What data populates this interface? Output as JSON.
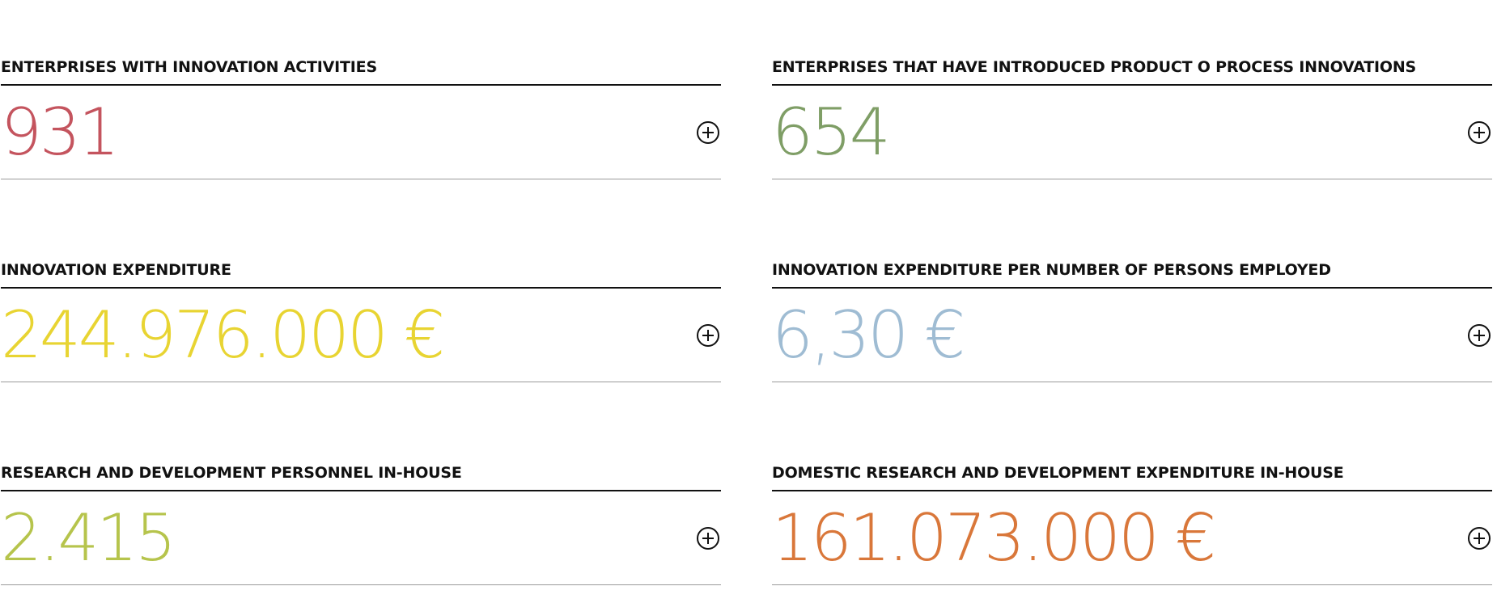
{
  "stats": [
    {
      "title": "ENTERPRISES WITH INNOVATION ACTIVITIES",
      "value": "931",
      "color": "#c4545e"
    },
    {
      "title": "ENTERPRISES THAT HAVE INTRODUCED PRODUCT O PROCESS INNOVATIONS",
      "value": "654",
      "color": "#7f9e66"
    },
    {
      "title": "INNOVATION EXPENDITURE",
      "value": "244.976.000 €",
      "color": "#e8d432"
    },
    {
      "title": "INNOVATION EXPENDITURE PER NUMBER OF PERSONS EMPLOYED",
      "value": "6,30 €",
      "color": "#9fbcd3"
    },
    {
      "title": "RESEARCH AND DEVELOPMENT PERSONNEL IN-HOUSE",
      "value": "2.415",
      "color": "#b6c44c"
    },
    {
      "title": "DOMESTIC RESEARCH AND DEVELOPMENT EXPENDITURE IN-HOUSE",
      "value": "161.073.000 €",
      "color": "#d9773a"
    }
  ],
  "icons": {
    "expand": "plus-circle-icon"
  }
}
